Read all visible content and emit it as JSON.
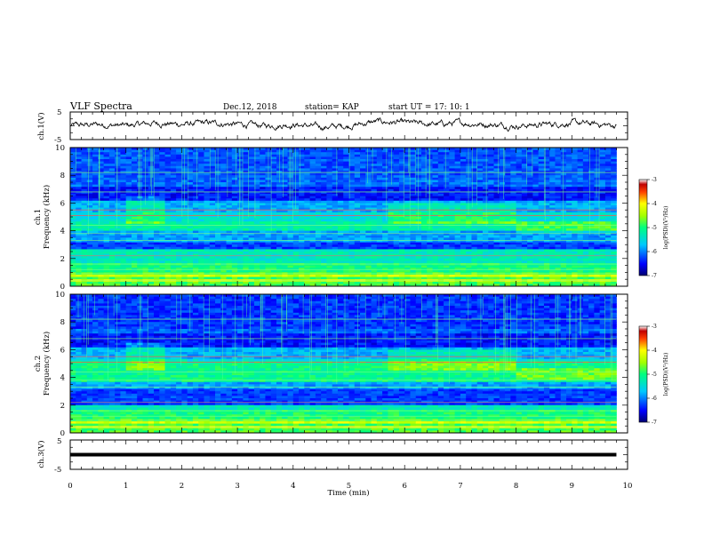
{
  "header": {
    "title": "VLF Spectra",
    "date": "Dec.12, 2018",
    "station": "station= KAP",
    "start": "start  UT  =    17: 10: 1"
  },
  "chart_data": [
    {
      "type": "line",
      "panel": "ch1-waveform",
      "ylabel": "ch.1(V)",
      "ylim": [
        -5,
        5
      ],
      "ytick_labels": [
        "5",
        "-5"
      ],
      "xlim": [
        0,
        10
      ],
      "data_end_min": 9.8,
      "series": [
        {
          "x": [
            0,
            0.5,
            1,
            1.5,
            2,
            2.5,
            3,
            3.5,
            4,
            4.5,
            5,
            5.5,
            6,
            6.5,
            7,
            7.5,
            8,
            8.5,
            9,
            9.5,
            9.8
          ],
          "values": [
            0,
            0.5,
            0,
            1,
            0.5,
            1,
            0.5,
            0,
            0.5,
            -0.5,
            0,
            1.5,
            1,
            0.5,
            1,
            0.5,
            0,
            0.5,
            1,
            0.5,
            0
          ]
        }
      ]
    },
    {
      "type": "heatmap",
      "panel": "ch1-spectrogram",
      "ylabel_lines": [
        "ch.1",
        "Frequency  (kHz)"
      ],
      "ylim": [
        0,
        10
      ],
      "ytick_labels": [
        "0",
        "2",
        "4",
        "6",
        "8",
        "10"
      ],
      "xlim": [
        0,
        10
      ],
      "data_end_min": 9.8,
      "colorbar": {
        "label": "log(PSD)(V²/Hz)",
        "range": [
          -7,
          -3
        ],
        "tick_labels": [
          "-3",
          "-4",
          "-5",
          "-6",
          "-7"
        ]
      }
    },
    {
      "type": "heatmap",
      "panel": "ch2-spectrogram",
      "ylabel_lines": [
        "ch.2",
        "Frequency  (kHz)"
      ],
      "ylim": [
        0,
        10
      ],
      "ytick_labels": [
        "0",
        "2",
        "4",
        "6",
        "8",
        "10"
      ],
      "xlim": [
        0,
        10
      ],
      "data_end_min": 9.8,
      "colorbar": {
        "label": "log(PSD)(V²/Hz)",
        "range": [
          -7,
          -3
        ],
        "tick_labels": [
          "-3",
          "-4",
          "-5",
          "-6",
          "-7"
        ]
      }
    },
    {
      "type": "line",
      "panel": "ch3-waveform",
      "ylabel": "ch.3(V)",
      "ylim": [
        -5,
        5
      ],
      "ytick_labels": [
        "5",
        "-5"
      ],
      "xlim": [
        0,
        10
      ],
      "data_end_min": 9.8,
      "series": [
        {
          "x": [
            0,
            9.8
          ],
          "values": [
            0,
            0
          ]
        }
      ]
    }
  ],
  "xaxis": {
    "label": "Time  (min)",
    "tick_labels": [
      "0",
      "1",
      "2",
      "3",
      "4",
      "5",
      "6",
      "7",
      "8",
      "9",
      "10"
    ]
  }
}
